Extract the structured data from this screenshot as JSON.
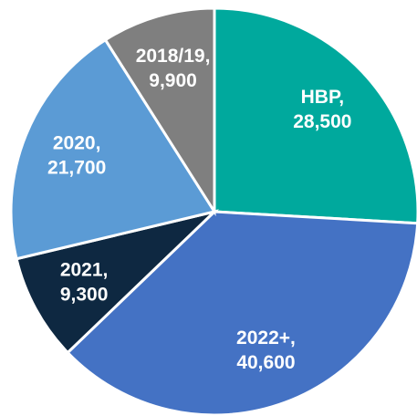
{
  "chart_data": {
    "type": "pie",
    "categories": [
      "HBP,",
      "2022+,",
      "2021,",
      "2020,",
      "2018/19,"
    ],
    "values": [
      28500,
      40600,
      9300,
      21700,
      9900
    ],
    "value_labels": [
      "28,500",
      "40,600",
      "9,300",
      "21,700",
      "9,900"
    ],
    "colors": [
      "#00a99d",
      "#4472c4",
      "#0e2841",
      "#5b9bd5",
      "#7f7f7f"
    ],
    "start_angle": 0,
    "direction": "clockwise"
  }
}
